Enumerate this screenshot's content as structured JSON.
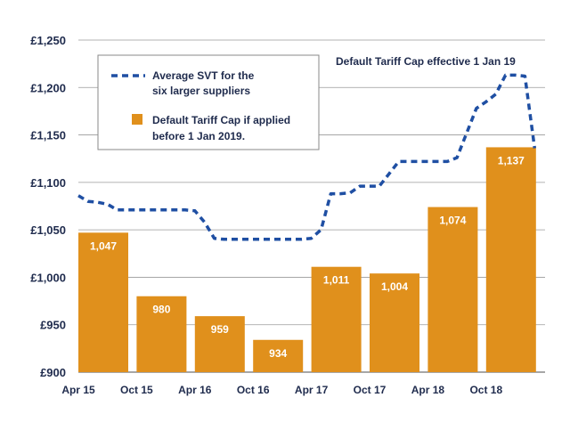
{
  "chart_data": {
    "type": "bar",
    "title": "",
    "xlabel": "",
    "ylabel": "",
    "ylim": [
      900,
      1250
    ],
    "yticks": [
      900,
      950,
      1000,
      1050,
      1100,
      1150,
      1200,
      1250
    ],
    "ytick_labels": [
      "£900",
      "£950",
      "£1,000",
      "£1,050",
      "£1,100",
      "£1,150",
      "£1,200",
      "£1,250"
    ],
    "grid": true,
    "x_tick_labels": [
      "Apr 15",
      "Oct 15",
      "Apr 16",
      "Oct 16",
      "Apr 17",
      "Oct 17",
      "Apr 18",
      "Oct 18"
    ],
    "bars": {
      "name": "Default Tariff Cap if applied before 1 Jan 2019.",
      "color": "#e0901c",
      "categories": [
        "Apr 15",
        "Oct 15",
        "Apr 16",
        "Oct 16",
        "Apr 17",
        "Oct 17",
        "Apr 18",
        "Oct 18"
      ],
      "values": [
        1047,
        980,
        959,
        934,
        1011,
        1004,
        1074,
        1137
      ],
      "labels": [
        "1,047",
        "980",
        "959",
        "934",
        "1,011",
        "1,004",
        "1,074",
        "1,137"
      ]
    },
    "line": {
      "name": "Average SVT for the six larger suppliers",
      "color": "#1f4fa3",
      "style": "dashed",
      "x_months": [
        0,
        1,
        2,
        3,
        4,
        5,
        6,
        7,
        8,
        9,
        10,
        11,
        12,
        13,
        14,
        15,
        16,
        17,
        18,
        19,
        20,
        21,
        22,
        23,
        24,
        25,
        26,
        27,
        28,
        29,
        30,
        31,
        32,
        33,
        34,
        35,
        36,
        37,
        38,
        39,
        40,
        41,
        42,
        43,
        44,
        45,
        46,
        47
      ],
      "values": [
        1086,
        1080,
        1079,
        1077,
        1071,
        1071,
        1071,
        1071,
        1071,
        1071,
        1071,
        1071,
        1070,
        1058,
        1041,
        1040,
        1040,
        1040,
        1040,
        1040,
        1040,
        1040,
        1040,
        1040,
        1041,
        1050,
        1088,
        1088,
        1089,
        1096,
        1096,
        1096,
        1109,
        1122,
        1122,
        1122,
        1122,
        1122,
        1122,
        1126,
        1152,
        1178,
        1185,
        1193,
        1213,
        1213,
        1212,
        1136
      ]
    },
    "legend": {
      "placement": "top-left",
      "entries": [
        {
          "type": "line",
          "label_lines": [
            "Average SVT for the",
            "six larger suppliers"
          ]
        },
        {
          "type": "bar",
          "label_lines": [
            "Default Tariff Cap if applied",
            "before 1 Jan 2019."
          ]
        }
      ]
    },
    "annotations": [
      {
        "text": "Default Tariff Cap effective 1 Jan 19",
        "placement": "top-right"
      }
    ]
  }
}
